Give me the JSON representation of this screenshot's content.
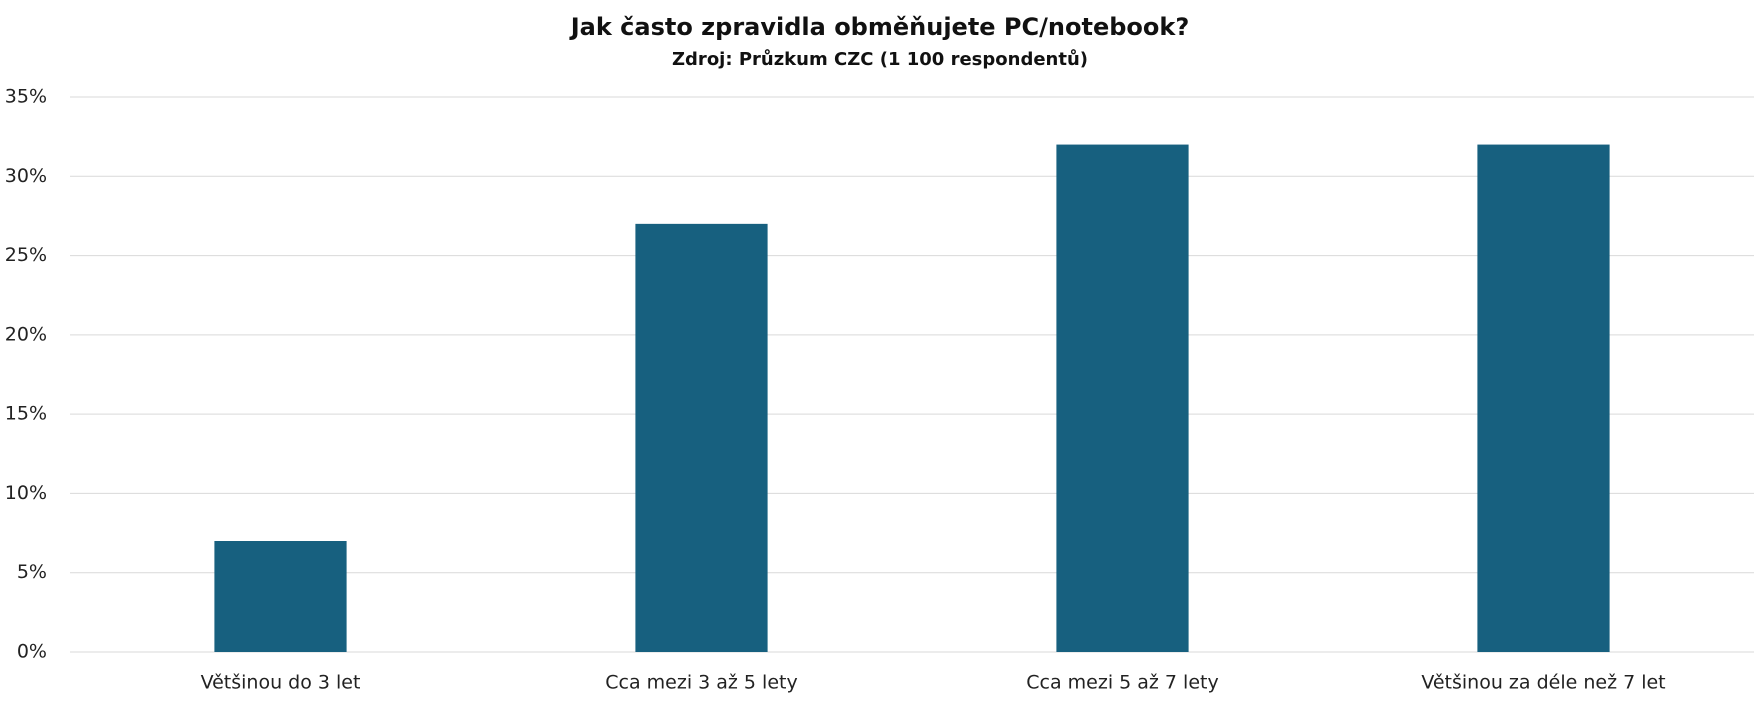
{
  "chart_data": {
    "type": "bar",
    "title": "Jak často zpravidla obměňujete PC/notebook?",
    "subtitle": "Zdroj: Průzkum CZC (1 100 respondentů)",
    "categories": [
      "Většinou do 3 let",
      "Cca mezi 3 až 5 lety",
      "Cca mezi 5 až 7 lety",
      "Většinou za déle než 7 let"
    ],
    "values": [
      7,
      27,
      32,
      32
    ],
    "color": "#17607f",
    "ylim": [
      0,
      35
    ],
    "yticks": [
      {
        "value": 0,
        "label": "0%"
      },
      {
        "value": 5,
        "label": "5%"
      },
      {
        "value": 10,
        "label": "10%"
      },
      {
        "value": 15,
        "label": "15%"
      },
      {
        "value": 20,
        "label": "20%"
      },
      {
        "value": 25,
        "label": "25%"
      },
      {
        "value": 30,
        "label": "30%"
      },
      {
        "value": 35,
        "label": "35%"
      }
    ],
    "grid": true
  }
}
